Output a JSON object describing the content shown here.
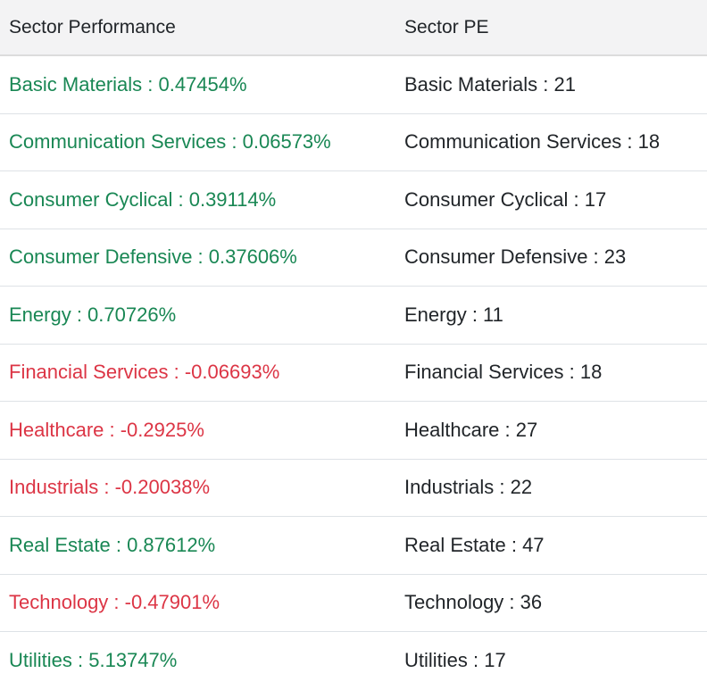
{
  "sector_performance": {
    "title": "Sector Performance",
    "rows": [
      {
        "text": "Basic Materials : 0.47454%",
        "trend": "positive"
      },
      {
        "text": "Communication Services : 0.06573%",
        "trend": "positive"
      },
      {
        "text": "Consumer Cyclical : 0.39114%",
        "trend": "positive"
      },
      {
        "text": "Consumer Defensive : 0.37606%",
        "trend": "positive"
      },
      {
        "text": "Energy : 0.70726%",
        "trend": "positive"
      },
      {
        "text": "Financial Services : -0.06693%",
        "trend": "negative"
      },
      {
        "text": "Healthcare : -0.2925%",
        "trend": "negative"
      },
      {
        "text": "Industrials : -0.20038%",
        "trend": "negative"
      },
      {
        "text": "Real Estate : 0.87612%",
        "trend": "positive"
      },
      {
        "text": "Technology : -0.47901%",
        "trend": "negative"
      },
      {
        "text": "Utilities : 5.13747%",
        "trend": "positive"
      }
    ]
  },
  "sector_pe": {
    "title": "Sector PE",
    "rows": [
      {
        "text": "Basic Materials : 21"
      },
      {
        "text": "Communication Services : 18"
      },
      {
        "text": "Consumer Cyclical : 17"
      },
      {
        "text": "Consumer Defensive : 23"
      },
      {
        "text": "Energy : 11"
      },
      {
        "text": "Financial Services : 18"
      },
      {
        "text": "Healthcare : 27"
      },
      {
        "text": "Industrials : 22"
      },
      {
        "text": "Real Estate : 47"
      },
      {
        "text": "Technology : 36"
      },
      {
        "text": "Utilities : 17"
      }
    ]
  },
  "colors": {
    "positive": "#198754",
    "negative": "#dc3545",
    "neutral": "#212529",
    "header_bg": "#f3f3f4",
    "row_border": "#dee2e6"
  }
}
